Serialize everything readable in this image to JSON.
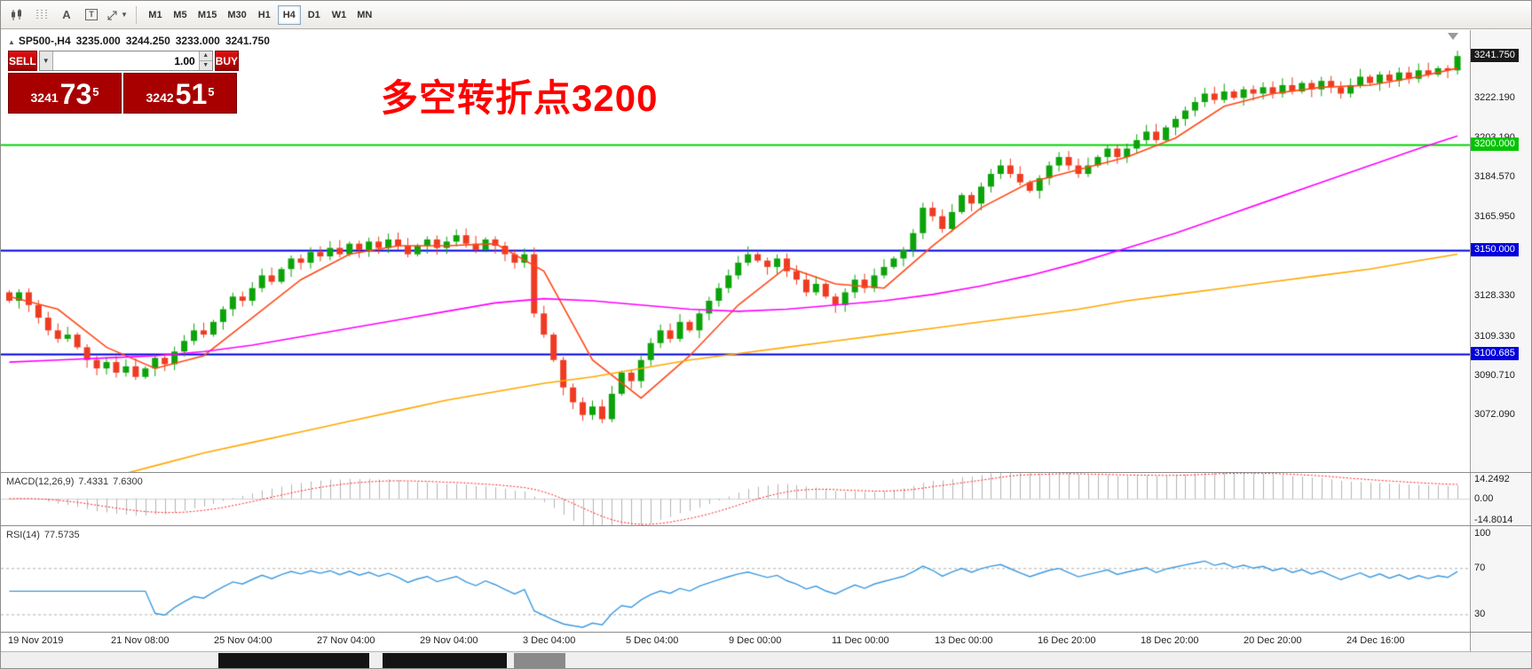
{
  "toolbar": {
    "timeframes": [
      "M1",
      "M5",
      "M15",
      "M30",
      "H1",
      "H4",
      "D1",
      "W1",
      "MN"
    ],
    "active_timeframe": "H4",
    "text_tool_label": "A",
    "textbox_tool_label": "T"
  },
  "chart_header": {
    "symbol": "SP500-,H4",
    "open": "3235.000",
    "high": "3244.250",
    "low": "3233.000",
    "close": "3241.750"
  },
  "trade_panel": {
    "sell_label": "SELL",
    "buy_label": "BUY",
    "volume": "1.00",
    "sell_price": {
      "base": "3241",
      "big": "73",
      "sup": "5"
    },
    "buy_price": {
      "base": "3242",
      "big": "51",
      "sup": "5"
    }
  },
  "annotation": {
    "text": "多空转折点3200",
    "color": "#ff0000"
  },
  "price_axis": {
    "ticks": [
      {
        "label": "3222.190",
        "value": 3222.19
      },
      {
        "label": "3203.190",
        "value": 3203.19
      },
      {
        "label": "3184.570",
        "value": 3184.57
      },
      {
        "label": "3165.950",
        "value": 3165.95
      },
      {
        "label": "3128.330",
        "value": 3128.33
      },
      {
        "label": "3109.330",
        "value": 3109.33
      },
      {
        "label": "3090.710",
        "value": 3090.71
      },
      {
        "label": "3072.090",
        "value": 3072.09
      }
    ],
    "badges": [
      {
        "label": "3241.750",
        "value": 3241.75,
        "bg": "#1a1a1a"
      },
      {
        "label": "3200.000",
        "value": 3200.0,
        "bg": "#00c400"
      },
      {
        "label": "3150.000",
        "value": 3150.0,
        "bg": "#0000dd"
      },
      {
        "label": "3100.685",
        "value": 3100.685,
        "bg": "#0000dd"
      }
    ]
  },
  "macd": {
    "label": "MACD(12,26,9)",
    "value_main": "7.4331",
    "value_signal": "7.6300",
    "axis": [
      {
        "label": "14.2492",
        "value": 14.2492
      },
      {
        "label": "0.00",
        "value": 0
      },
      {
        "label": "-14.8014",
        "value": -14.8014
      }
    ]
  },
  "rsi": {
    "label": "RSI(14)",
    "value": "77.5735",
    "axis": [
      {
        "label": "100",
        "value": 100
      },
      {
        "label": "70",
        "value": 70
      },
      {
        "label": "30",
        "value": 30
      }
    ],
    "levels": [
      70,
      30
    ]
  },
  "time_axis": {
    "labels": [
      "19 Nov 2019",
      "21 Nov 08:00",
      "25 Nov 04:00",
      "27 Nov 04:00",
      "29 Nov 04:00",
      "3 Dec 04:00",
      "5 Dec 04:00",
      "9 Dec 00:00",
      "11 Dec 00:00",
      "13 Dec 00:00",
      "16 Dec 20:00",
      "18 Dec 20:00",
      "20 Dec 20:00",
      "24 Dec 16:00"
    ]
  },
  "chart_data": {
    "type": "candlestick",
    "symbol": "SP500-",
    "timeframe": "H4",
    "title": "SP500- H4 with MA fast/medium/slow, MACD(12,26,9), RSI(14)",
    "y_range": [
      3045,
      3254
    ],
    "current_ohlc": {
      "open": 3235.0,
      "high": 3244.25,
      "low": 3233.0,
      "close": 3241.75
    },
    "first_open": 3130,
    "up_color": "#0ca30a",
    "down_color": "#ee3b22",
    "closes": [
      3126,
      3130,
      3124,
      3118,
      3112,
      3108,
      3110,
      3104,
      3098,
      3094,
      3097,
      3092,
      3095,
      3090,
      3094,
      3099,
      3096,
      3102,
      3107,
      3112,
      3110,
      3116,
      3122,
      3128,
      3126,
      3132,
      3138,
      3135,
      3141,
      3146,
      3144,
      3149,
      3147,
      3151,
      3148,
      3153,
      3150,
      3154,
      3151,
      3155,
      3152,
      3148,
      3152,
      3155,
      3151,
      3154,
      3157,
      3153,
      3150,
      3155,
      3152,
      3148,
      3144,
      3148,
      3120,
      3110,
      3098,
      3085,
      3078,
      3072,
      3076,
      3070,
      3082,
      3092,
      3088,
      3098,
      3106,
      3112,
      3108,
      3116,
      3112,
      3120,
      3126,
      3132,
      3138,
      3144,
      3148,
      3145,
      3142,
      3146,
      3140,
      3136,
      3130,
      3134,
      3128,
      3124,
      3130,
      3136,
      3132,
      3138,
      3142,
      3146,
      3150,
      3158,
      3170,
      3166,
      3160,
      3168,
      3176,
      3172,
      3180,
      3186,
      3190,
      3186,
      3182,
      3178,
      3184,
      3190,
      3194,
      3190,
      3186,
      3190,
      3194,
      3198,
      3194,
      3198,
      3202,
      3206,
      3202,
      3208,
      3212,
      3216,
      3220,
      3224,
      3221,
      3225,
      3222,
      3226,
      3224,
      3227,
      3224,
      3228,
      3225,
      3229,
      3226,
      3230,
      3227,
      3224,
      3228,
      3232,
      3229,
      3233,
      3230,
      3234,
      3231,
      3235,
      3233,
      3236,
      3235,
      3241.75
    ],
    "moving_averages": [
      {
        "name": "ma-fast",
        "color": "#ff4818",
        "sampled_every": 5,
        "values": [
          3128,
          3122,
          3104,
          3094,
          3100,
          3118,
          3136,
          3148,
          3152,
          3152,
          3153,
          3140,
          3098,
          3080,
          3100,
          3124,
          3142,
          3134,
          3132,
          3152,
          3170,
          3182,
          3188,
          3194,
          3203,
          3218,
          3224,
          3227,
          3228,
          3232,
          3236
        ]
      },
      {
        "name": "ma-medium",
        "color": "#ff00ff",
        "sampled_every": 5,
        "values": [
          3097,
          3098,
          3099,
          3100,
          3102,
          3105,
          3109,
          3113,
          3117,
          3121,
          3125,
          3127,
          3126,
          3124,
          3122,
          3121,
          3122,
          3124,
          3126,
          3129,
          3133,
          3138,
          3144,
          3151,
          3158,
          3166,
          3174,
          3182,
          3190,
          3198,
          3204
        ]
      },
      {
        "name": "ma-slow",
        "color": "#ffa800",
        "sampled_every": 5,
        "values": [
          3030,
          3036,
          3042,
          3048,
          3054,
          3059,
          3064,
          3069,
          3074,
          3079,
          3083,
          3087,
          3090,
          3094,
          3098,
          3101,
          3104,
          3107,
          3110,
          3113,
          3116,
          3119,
          3122,
          3126,
          3129,
          3132,
          3135,
          3138,
          3141,
          3145,
          3148
        ]
      }
    ],
    "hlines": [
      {
        "value": 3200.0,
        "color": "#00d200",
        "label": "3200.000"
      },
      {
        "value": 3150.0,
        "color": "#0000e0",
        "label": "3150.000"
      },
      {
        "value": 3100.685,
        "color": "#0000e0",
        "label": "3100.685"
      }
    ],
    "macd": {
      "params": [
        12,
        26,
        9
      ],
      "current": [
        7.4331,
        7.63
      ],
      "axis_range": [
        16.5,
        -17
      ]
    },
    "rsi": {
      "period": 14,
      "current": 77.5735,
      "levels": [
        70,
        30
      ],
      "axis_range": [
        104,
        18
      ]
    }
  }
}
